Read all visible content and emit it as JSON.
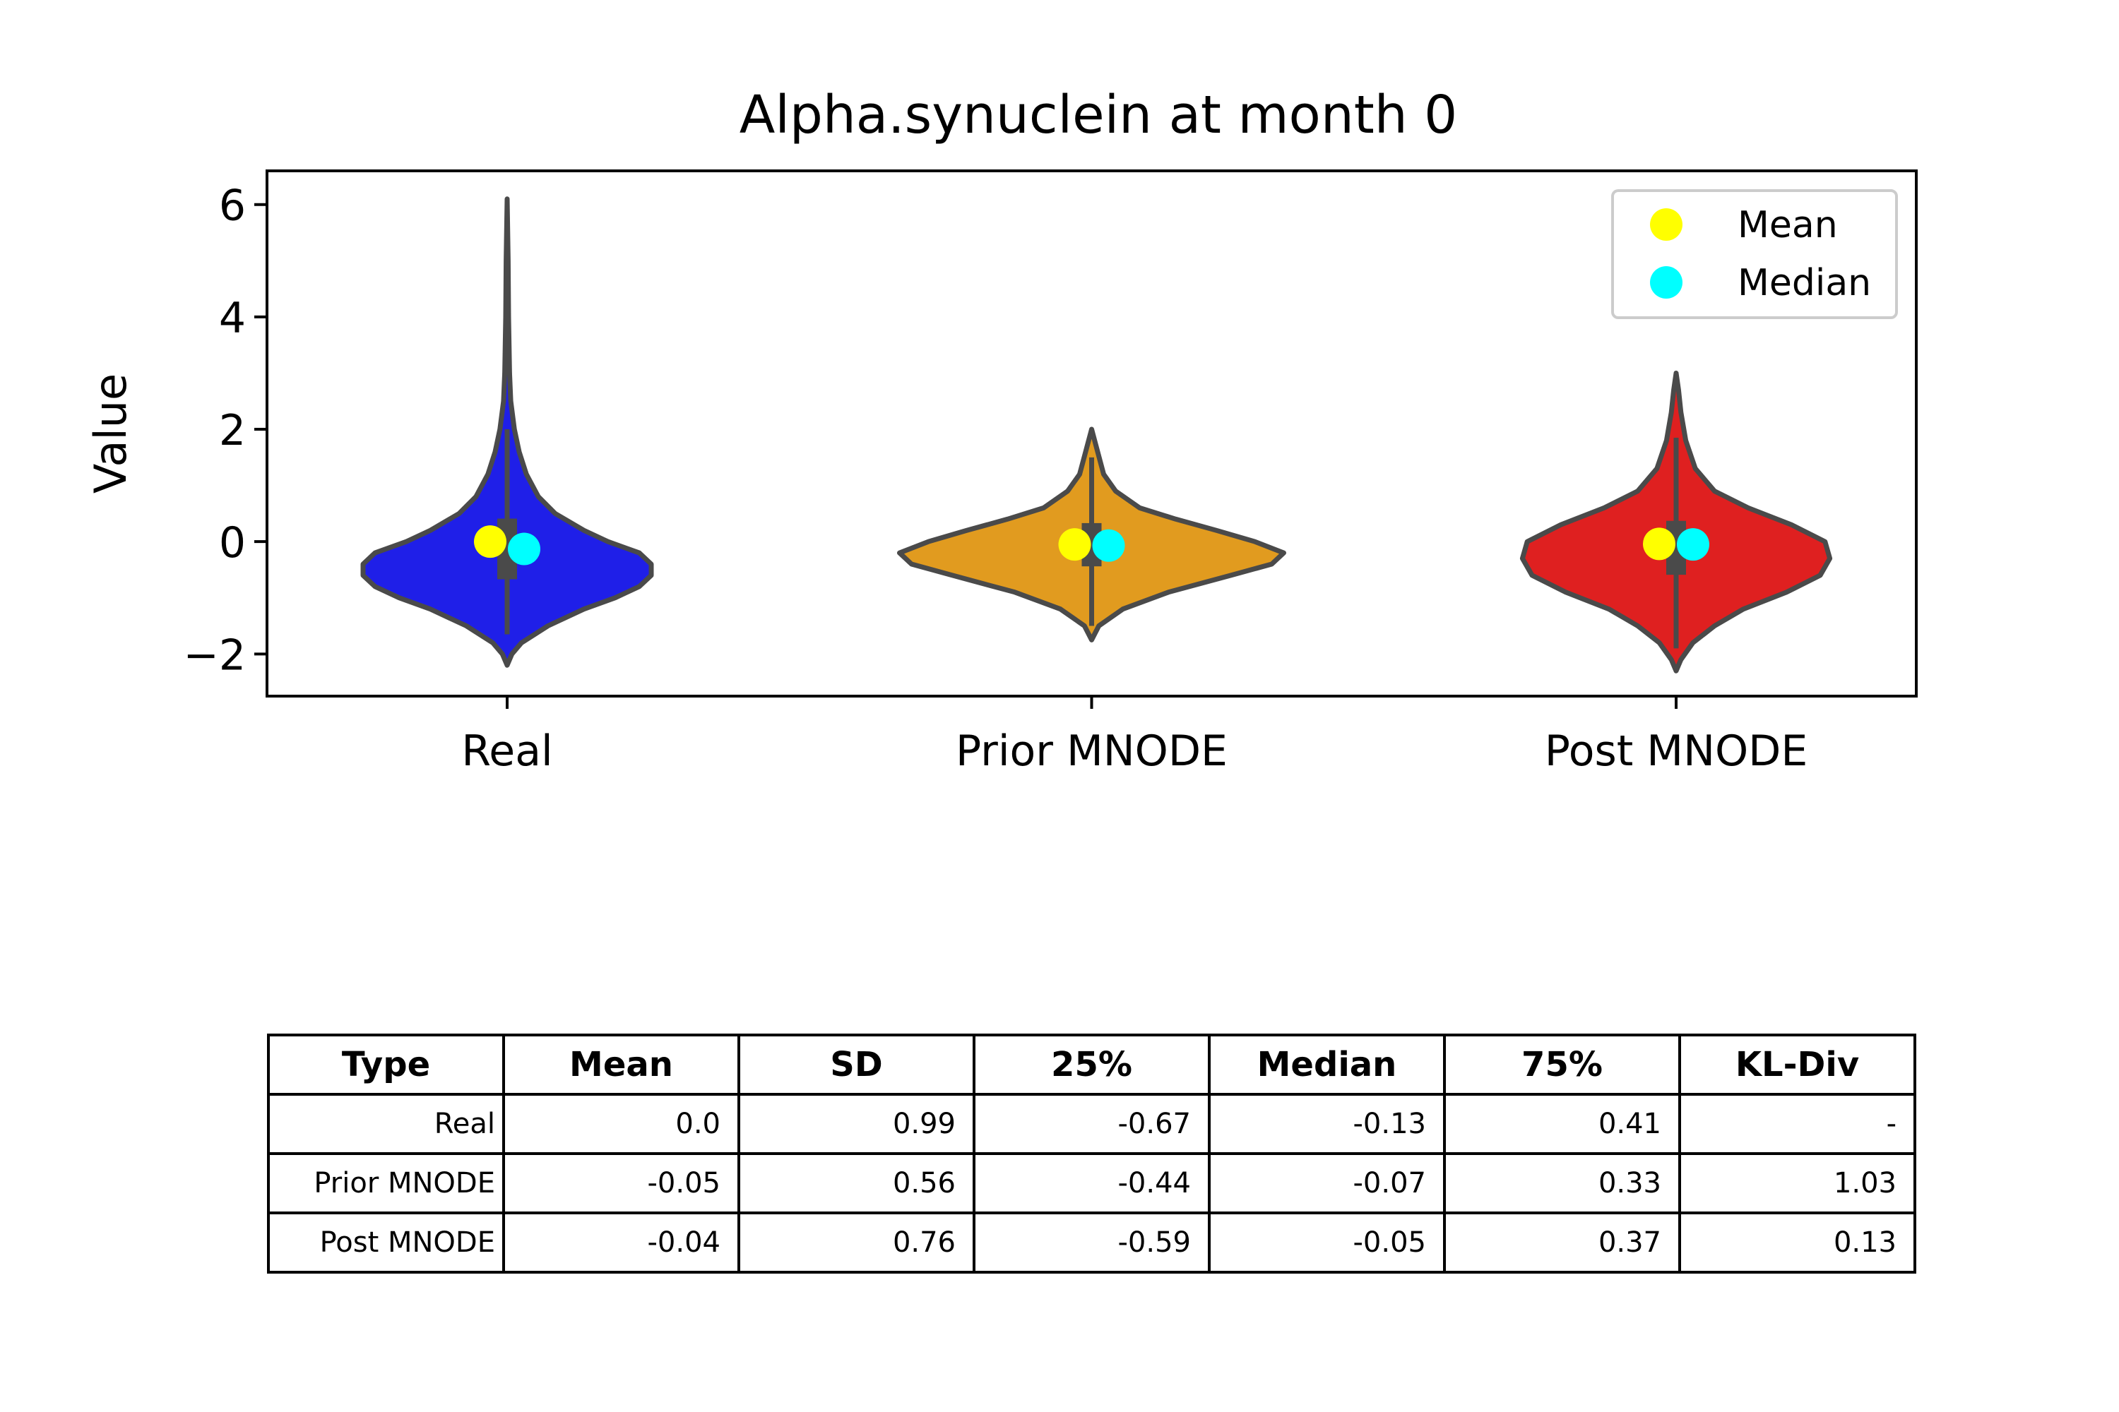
{
  "chart_data": {
    "type": "violin",
    "title": "Alpha.synuclein at month 0",
    "ylabel": "Value",
    "xlabel": "",
    "ylim": [
      -2.75,
      6.6
    ],
    "yticks": [
      -2,
      0,
      2,
      4,
      6
    ],
    "ytick_labels": [
      "−2",
      "0",
      "2",
      "4",
      "6"
    ],
    "categories": [
      "Real",
      "Prior MNODE",
      "Post MNODE"
    ],
    "series": [
      {
        "category": "Real",
        "color": "#1f1fe8",
        "profile": [
          [
            -2.2,
            0.0
          ],
          [
            -2.0,
            0.02
          ],
          [
            -1.8,
            0.06
          ],
          [
            -1.5,
            0.17
          ],
          [
            -1.2,
            0.32
          ],
          [
            -1.0,
            0.45
          ],
          [
            -0.8,
            0.55
          ],
          [
            -0.6,
            0.6
          ],
          [
            -0.4,
            0.6
          ],
          [
            -0.2,
            0.55
          ],
          [
            0.0,
            0.42
          ],
          [
            0.2,
            0.32
          ],
          [
            0.5,
            0.2
          ],
          [
            0.8,
            0.13
          ],
          [
            1.2,
            0.08
          ],
          [
            1.6,
            0.05
          ],
          [
            2.0,
            0.03
          ],
          [
            2.5,
            0.015
          ],
          [
            3.0,
            0.01
          ],
          [
            3.5,
            0.008
          ],
          [
            4.0,
            0.006
          ],
          [
            5.0,
            0.004
          ],
          [
            6.1,
            0.0
          ]
        ],
        "whisker": [
          -1.65,
          2.0
        ],
        "q1": -0.67,
        "q3": 0.41,
        "mean": 0.0,
        "median": -0.13
      },
      {
        "category": "Prior MNODE",
        "color": "#e19b1f",
        "profile": [
          [
            -1.75,
            0.0
          ],
          [
            -1.5,
            0.03
          ],
          [
            -1.2,
            0.13
          ],
          [
            -0.9,
            0.32
          ],
          [
            -0.6,
            0.58
          ],
          [
            -0.4,
            0.75
          ],
          [
            -0.2,
            0.8
          ],
          [
            0.0,
            0.68
          ],
          [
            0.2,
            0.52
          ],
          [
            0.4,
            0.35
          ],
          [
            0.6,
            0.2
          ],
          [
            0.9,
            0.1
          ],
          [
            1.2,
            0.05
          ],
          [
            1.6,
            0.025
          ],
          [
            2.0,
            0.0
          ]
        ],
        "whisker": [
          -1.5,
          1.5
        ],
        "q1": -0.44,
        "q3": 0.33,
        "mean": -0.05,
        "median": -0.07
      },
      {
        "category": "Post MNODE",
        "color": "#df2020",
        "profile": [
          [
            -2.3,
            0.0
          ],
          [
            -2.1,
            0.02
          ],
          [
            -1.8,
            0.07
          ],
          [
            -1.5,
            0.16
          ],
          [
            -1.2,
            0.28
          ],
          [
            -0.9,
            0.46
          ],
          [
            -0.6,
            0.6
          ],
          [
            -0.3,
            0.64
          ],
          [
            0.0,
            0.62
          ],
          [
            0.3,
            0.48
          ],
          [
            0.6,
            0.3
          ],
          [
            0.9,
            0.16
          ],
          [
            1.3,
            0.08
          ],
          [
            1.8,
            0.04
          ],
          [
            2.3,
            0.02
          ],
          [
            2.7,
            0.01
          ],
          [
            3.0,
            0.0
          ]
        ],
        "whisker": [
          -1.9,
          1.85
        ],
        "q1": -0.59,
        "q3": 0.37,
        "mean": -0.04,
        "median": -0.05
      }
    ],
    "legend": {
      "position": "top-right",
      "entries": [
        {
          "label": "Mean",
          "color": "#ffff00"
        },
        {
          "label": "Median",
          "color": "#00ffff"
        }
      ]
    },
    "grid": false
  },
  "table": {
    "headers": [
      "Type",
      "Mean",
      "SD",
      "25%",
      "Median",
      "75%",
      "KL-Div"
    ],
    "rows": [
      [
        "Real",
        "0.0",
        "0.99",
        "-0.67",
        "-0.13",
        "0.41",
        "-"
      ],
      [
        "Prior MNODE",
        "-0.05",
        "0.56",
        "-0.44",
        "-0.07",
        "0.33",
        "1.03"
      ],
      [
        "Post MNODE",
        "-0.04",
        "0.76",
        "-0.59",
        "-0.05",
        "0.37",
        "0.13"
      ]
    ]
  }
}
